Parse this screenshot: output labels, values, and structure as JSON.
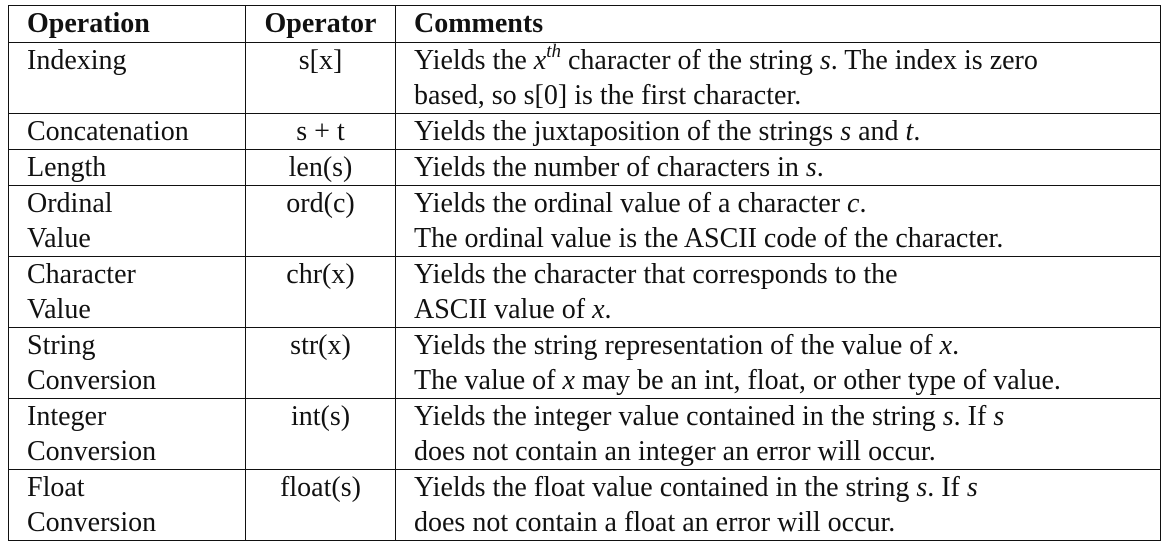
{
  "headers": {
    "operation": "Operation",
    "operator": "Operator",
    "comments": "Comments"
  },
  "rows": [
    {
      "operation": [
        "Indexing"
      ],
      "operator": "s[x]",
      "comment_lines": [
        [
          {
            "t": "Yields the "
          },
          {
            "t": "x",
            "i": true
          },
          {
            "t": "th",
            "sup": true,
            "i": true
          },
          {
            "t": " character of the string "
          },
          {
            "t": "s",
            "i": true
          },
          {
            "t": ". The index is zero"
          }
        ],
        [
          {
            "t": "based, so s[0] is the first character."
          }
        ]
      ]
    },
    {
      "operation": [
        "Concatenation"
      ],
      "operator": "s + t",
      "comment_lines": [
        [
          {
            "t": "Yields the juxtaposition of the strings "
          },
          {
            "t": "s",
            "i": true
          },
          {
            "t": " and "
          },
          {
            "t": "t",
            "i": true
          },
          {
            "t": "."
          }
        ]
      ]
    },
    {
      "operation": [
        "Length"
      ],
      "operator": "len(s)",
      "comment_lines": [
        [
          {
            "t": "Yields the number of characters in "
          },
          {
            "t": "s",
            "i": true
          },
          {
            "t": "."
          }
        ]
      ]
    },
    {
      "operation": [
        "Ordinal",
        "Value"
      ],
      "operator": "ord(c)",
      "comment_lines": [
        [
          {
            "t": "Yields the ordinal value of a character "
          },
          {
            "t": "c",
            "i": true
          },
          {
            "t": "."
          }
        ],
        [
          {
            "t": "The ordinal value is the ASCII code of the character."
          }
        ]
      ]
    },
    {
      "operation": [
        "Character",
        "Value"
      ],
      "operator": "chr(x)",
      "comment_lines": [
        [
          {
            "t": "Yields the character that corresponds to the"
          }
        ],
        [
          {
            "t": "ASCII value of "
          },
          {
            "t": "x",
            "i": true
          },
          {
            "t": "."
          }
        ]
      ]
    },
    {
      "operation": [
        "String",
        "Conversion"
      ],
      "operator": "str(x)",
      "comment_lines": [
        [
          {
            "t": "Yields the string representation of the value of "
          },
          {
            "t": "x",
            "i": true
          },
          {
            "t": "."
          }
        ],
        [
          {
            "t": "The value of "
          },
          {
            "t": "x",
            "i": true
          },
          {
            "t": " may be an int, float, or other type of value."
          }
        ]
      ]
    },
    {
      "operation": [
        "Integer",
        "Conversion"
      ],
      "operator": "int(s)",
      "comment_lines": [
        [
          {
            "t": "Yields the integer value contained in the string "
          },
          {
            "t": "s",
            "i": true
          },
          {
            "t": ". If "
          },
          {
            "t": "s",
            "i": true
          }
        ],
        [
          {
            "t": "does not contain an integer an error will occur."
          }
        ]
      ]
    },
    {
      "operation": [
        "Float",
        "Conversion"
      ],
      "operator": "float(s)",
      "comment_lines": [
        [
          {
            "t": "Yields the float value contained in the string "
          },
          {
            "t": "s",
            "i": true
          },
          {
            "t": ". If "
          },
          {
            "t": "s",
            "i": true
          }
        ],
        [
          {
            "t": "does not contain a float an error will occur."
          }
        ]
      ]
    }
  ]
}
